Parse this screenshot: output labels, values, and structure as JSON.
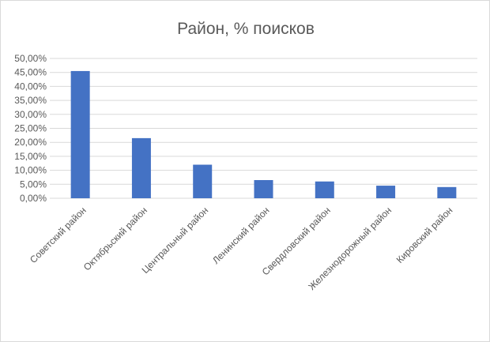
{
  "chart_data": {
    "type": "bar",
    "title": "Район, % поисков",
    "categories": [
      "Советский район",
      "Октябрьский район",
      "Центральный район",
      "Ленинский район",
      "Свердловский район",
      "Железнодорожный район",
      "Кировский район"
    ],
    "values": [
      45.5,
      21.5,
      12.0,
      6.5,
      6.0,
      4.5,
      4.0
    ],
    "ylim": [
      0,
      50
    ],
    "yticks": [
      "0,00%",
      "5,00%",
      "10,00%",
      "15,00%",
      "20,00%",
      "25,00%",
      "30,00%",
      "35,00%",
      "40,00%",
      "45,00%",
      "50,00%"
    ],
    "grid": true,
    "bar_color": "#4472c4",
    "grid_color": "#d9d9d9",
    "text_color": "#595959"
  }
}
